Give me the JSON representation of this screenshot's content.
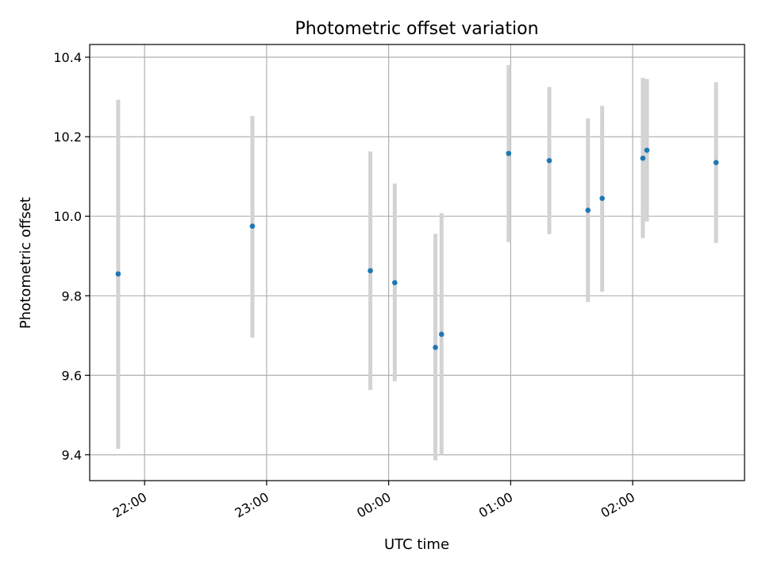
{
  "chart_data": {
    "type": "scatter",
    "title": "Photometric offset variation",
    "xlabel": "UTC time",
    "ylabel": "Photometric offset",
    "x_axis": "time",
    "xlim": [
      "21:33",
      "02:55"
    ],
    "ylim": [
      9.335,
      10.432
    ],
    "xticks": [
      "22:00",
      "23:00",
      "00:00",
      "01:00",
      "02:00"
    ],
    "yticks": [
      "9.4",
      "9.6",
      "9.8",
      "10.0",
      "10.2",
      "10.4"
    ],
    "grid": true,
    "colors": {
      "marker": "#1f77b4",
      "errorbar": "#d3d3d3",
      "grid": "#b0b0b0"
    },
    "points": [
      {
        "x": "21:47",
        "y": 9.855,
        "low": 9.415,
        "high": 10.293
      },
      {
        "x": "22:53",
        "y": 9.975,
        "low": 9.695,
        "high": 10.252
      },
      {
        "x": "23:51",
        "y": 9.863,
        "low": 9.563,
        "high": 10.163
      },
      {
        "x": "00:03",
        "y": 9.833,
        "low": 9.585,
        "high": 10.082
      },
      {
        "x": "00:23",
        "y": 9.67,
        "low": 9.386,
        "high": 9.956
      },
      {
        "x": "00:26",
        "y": 9.703,
        "low": 9.4,
        "high": 10.008
      },
      {
        "x": "00:59",
        "y": 10.158,
        "low": 9.935,
        "high": 10.38
      },
      {
        "x": "01:19",
        "y": 10.14,
        "low": 9.955,
        "high": 10.325
      },
      {
        "x": "01:38",
        "y": 10.015,
        "low": 9.784,
        "high": 10.246
      },
      {
        "x": "01:45",
        "y": 10.045,
        "low": 9.81,
        "high": 10.278
      },
      {
        "x": "02:05",
        "y": 10.146,
        "low": 9.945,
        "high": 10.348
      },
      {
        "x": "02:07",
        "y": 10.166,
        "low": 9.987,
        "high": 10.345
      },
      {
        "x": "02:41",
        "y": 10.135,
        "low": 9.933,
        "high": 10.337
      }
    ]
  }
}
